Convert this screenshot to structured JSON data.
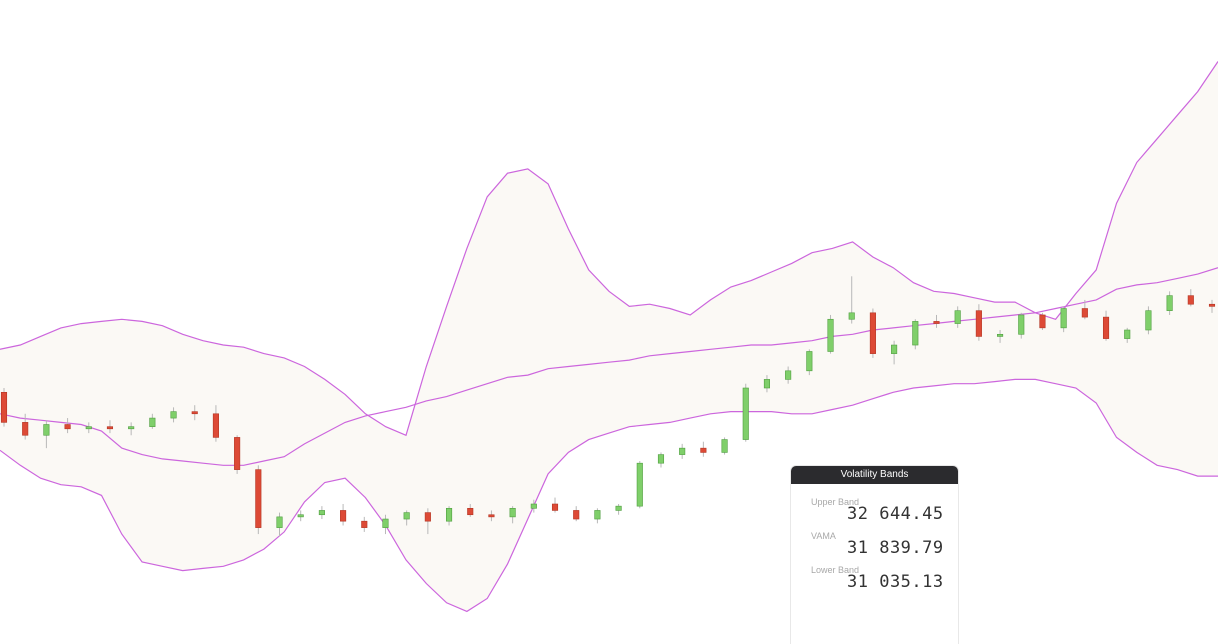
{
  "panel": {
    "title": "Volatility Bands",
    "rows": [
      {
        "label": "Upper Band",
        "value": "32 644.45"
      },
      {
        "label": "VAMA",
        "value": "31 839.79"
      },
      {
        "label": "Lower Band",
        "value": "31 035.13"
      }
    ]
  },
  "colors": {
    "band_line": "#cc66dd",
    "band_fill": "#fbf9f5",
    "up_candle": "#7fcf6a",
    "down_candle": "#dd4a36",
    "wick": "#b8b8b8"
  },
  "chart_data": {
    "type": "candlestick",
    "price_range_estimate": [
      30600,
      33300
    ],
    "note_fields": [
      "x_index",
      "open",
      "high",
      "low",
      "close"
    ],
    "upper_band": [
      31860,
      31880,
      31920,
      31960,
      31980,
      31990,
      32000,
      31990,
      31970,
      31930,
      31900,
      31880,
      31870,
      31840,
      31820,
      31780,
      31720,
      31650,
      31560,
      31500,
      31460,
      31780,
      32060,
      32330,
      32570,
      32680,
      32700,
      32630,
      32420,
      32230,
      32130,
      32060,
      32070,
      32050,
      32020,
      32090,
      32150,
      32180,
      32220,
      32260,
      32310,
      32330,
      32360,
      32290,
      32240,
      32170,
      32130,
      32120,
      32100,
      32080,
      32080,
      32030,
      32000,
      32120,
      32230,
      32540,
      32730,
      32840,
      32950,
      33060,
      33200
    ],
    "middle_band": [
      31560,
      31540,
      31530,
      31520,
      31510,
      31480,
      31400,
      31370,
      31350,
      31340,
      31330,
      31320,
      31320,
      31340,
      31360,
      31420,
      31470,
      31520,
      31550,
      31570,
      31590,
      31620,
      31640,
      31670,
      31700,
      31730,
      31740,
      31770,
      31780,
      31790,
      31800,
      31810,
      31830,
      31840,
      31850,
      31860,
      31870,
      31880,
      31880,
      31890,
      31900,
      31920,
      31930,
      31950,
      31960,
      31970,
      31980,
      31990,
      32000,
      32010,
      32020,
      32030,
      32050,
      32070,
      32090,
      32140,
      32160,
      32170,
      32190,
      32210,
      32240
    ],
    "lower_band": [
      31390,
      31320,
      31260,
      31230,
      31220,
      31180,
      31000,
      30870,
      30850,
      30830,
      30840,
      30850,
      30880,
      30930,
      31010,
      31150,
      31240,
      31260,
      31170,
      31040,
      30880,
      30770,
      30680,
      30640,
      30700,
      30860,
      31070,
      31280,
      31380,
      31440,
      31470,
      31500,
      31510,
      31520,
      31540,
      31560,
      31570,
      31570,
      31570,
      31560,
      31560,
      31580,
      31600,
      31630,
      31660,
      31680,
      31690,
      31700,
      31700,
      31710,
      31720,
      31720,
      31700,
      31680,
      31610,
      31450,
      31380,
      31320,
      31300,
      31270,
      31270
    ],
    "candles": [
      [
        0,
        31660,
        31680,
        31500,
        31520
      ],
      [
        1,
        31520,
        31560,
        31440,
        31460
      ],
      [
        2,
        31460,
        31530,
        31400,
        31510
      ],
      [
        3,
        31510,
        31540,
        31470,
        31490
      ],
      [
        4,
        31490,
        31520,
        31470,
        31500
      ],
      [
        5,
        31500,
        31530,
        31470,
        31490
      ],
      [
        6,
        31490,
        31520,
        31460,
        31500
      ],
      [
        7,
        31500,
        31560,
        31490,
        31540
      ],
      [
        8,
        31540,
        31590,
        31520,
        31570
      ],
      [
        9,
        31570,
        31600,
        31530,
        31560
      ],
      [
        10,
        31560,
        31600,
        31430,
        31450
      ],
      [
        11,
        31450,
        31460,
        31280,
        31300
      ],
      [
        12,
        31300,
        31320,
        31000,
        31030
      ],
      [
        13,
        31030,
        31100,
        30990,
        31080
      ],
      [
        14,
        31080,
        31110,
        31060,
        31090
      ],
      [
        15,
        31090,
        31130,
        31070,
        31110
      ],
      [
        16,
        31110,
        31140,
        31040,
        31060
      ],
      [
        17,
        31060,
        31080,
        31010,
        31030
      ],
      [
        18,
        31030,
        31090,
        31000,
        31070
      ],
      [
        19,
        31070,
        31110,
        31040,
        31100
      ],
      [
        20,
        31100,
        31120,
        31000,
        31060
      ],
      [
        21,
        31060,
        31130,
        31040,
        31120
      ],
      [
        22,
        31120,
        31140,
        31080,
        31090
      ],
      [
        23,
        31090,
        31110,
        31060,
        31080
      ],
      [
        24,
        31080,
        31130,
        31050,
        31120
      ],
      [
        25,
        31120,
        31160,
        31100,
        31140
      ],
      [
        26,
        31140,
        31170,
        31100,
        31110
      ],
      [
        27,
        31110,
        31130,
        31060,
        31070
      ],
      [
        28,
        31070,
        31120,
        31050,
        31110
      ],
      [
        29,
        31110,
        31140,
        31090,
        31130
      ],
      [
        30,
        31130,
        31340,
        31120,
        31330
      ],
      [
        31,
        31330,
        31380,
        31310,
        31370
      ],
      [
        32,
        31370,
        31420,
        31350,
        31400
      ],
      [
        33,
        31400,
        31430,
        31360,
        31380
      ],
      [
        34,
        31380,
        31450,
        31370,
        31440
      ],
      [
        35,
        31440,
        31700,
        31430,
        31680
      ],
      [
        36,
        31680,
        31740,
        31660,
        31720
      ],
      [
        37,
        31720,
        31780,
        31700,
        31760
      ],
      [
        38,
        31760,
        31860,
        31740,
        31850
      ],
      [
        39,
        31850,
        32020,
        31840,
        32000
      ],
      [
        40,
        32000,
        32200,
        31980,
        32030
      ],
      [
        41,
        32030,
        32050,
        31820,
        31840
      ],
      [
        42,
        31840,
        31900,
        31790,
        31880
      ],
      [
        43,
        31880,
        32000,
        31860,
        31990
      ],
      [
        44,
        31990,
        32020,
        31960,
        31980
      ],
      [
        45,
        31980,
        32060,
        31960,
        32040
      ],
      [
        46,
        32040,
        32070,
        31900,
        31920
      ],
      [
        47,
        31920,
        31950,
        31890,
        31930
      ],
      [
        48,
        31930,
        32030,
        31910,
        32020
      ],
      [
        49,
        32020,
        32030,
        31950,
        31960
      ],
      [
        50,
        31960,
        32060,
        31940,
        32050
      ],
      [
        51,
        32050,
        32090,
        32000,
        32010
      ],
      [
        52,
        32010,
        32040,
        31900,
        31910
      ],
      [
        53,
        31910,
        31960,
        31890,
        31950
      ],
      [
        54,
        31950,
        32060,
        31930,
        32040
      ],
      [
        55,
        32040,
        32130,
        32020,
        32110
      ],
      [
        56,
        32110,
        32140,
        32060,
        32070
      ],
      [
        57,
        32070,
        32090,
        32030,
        32060
      ]
    ]
  }
}
